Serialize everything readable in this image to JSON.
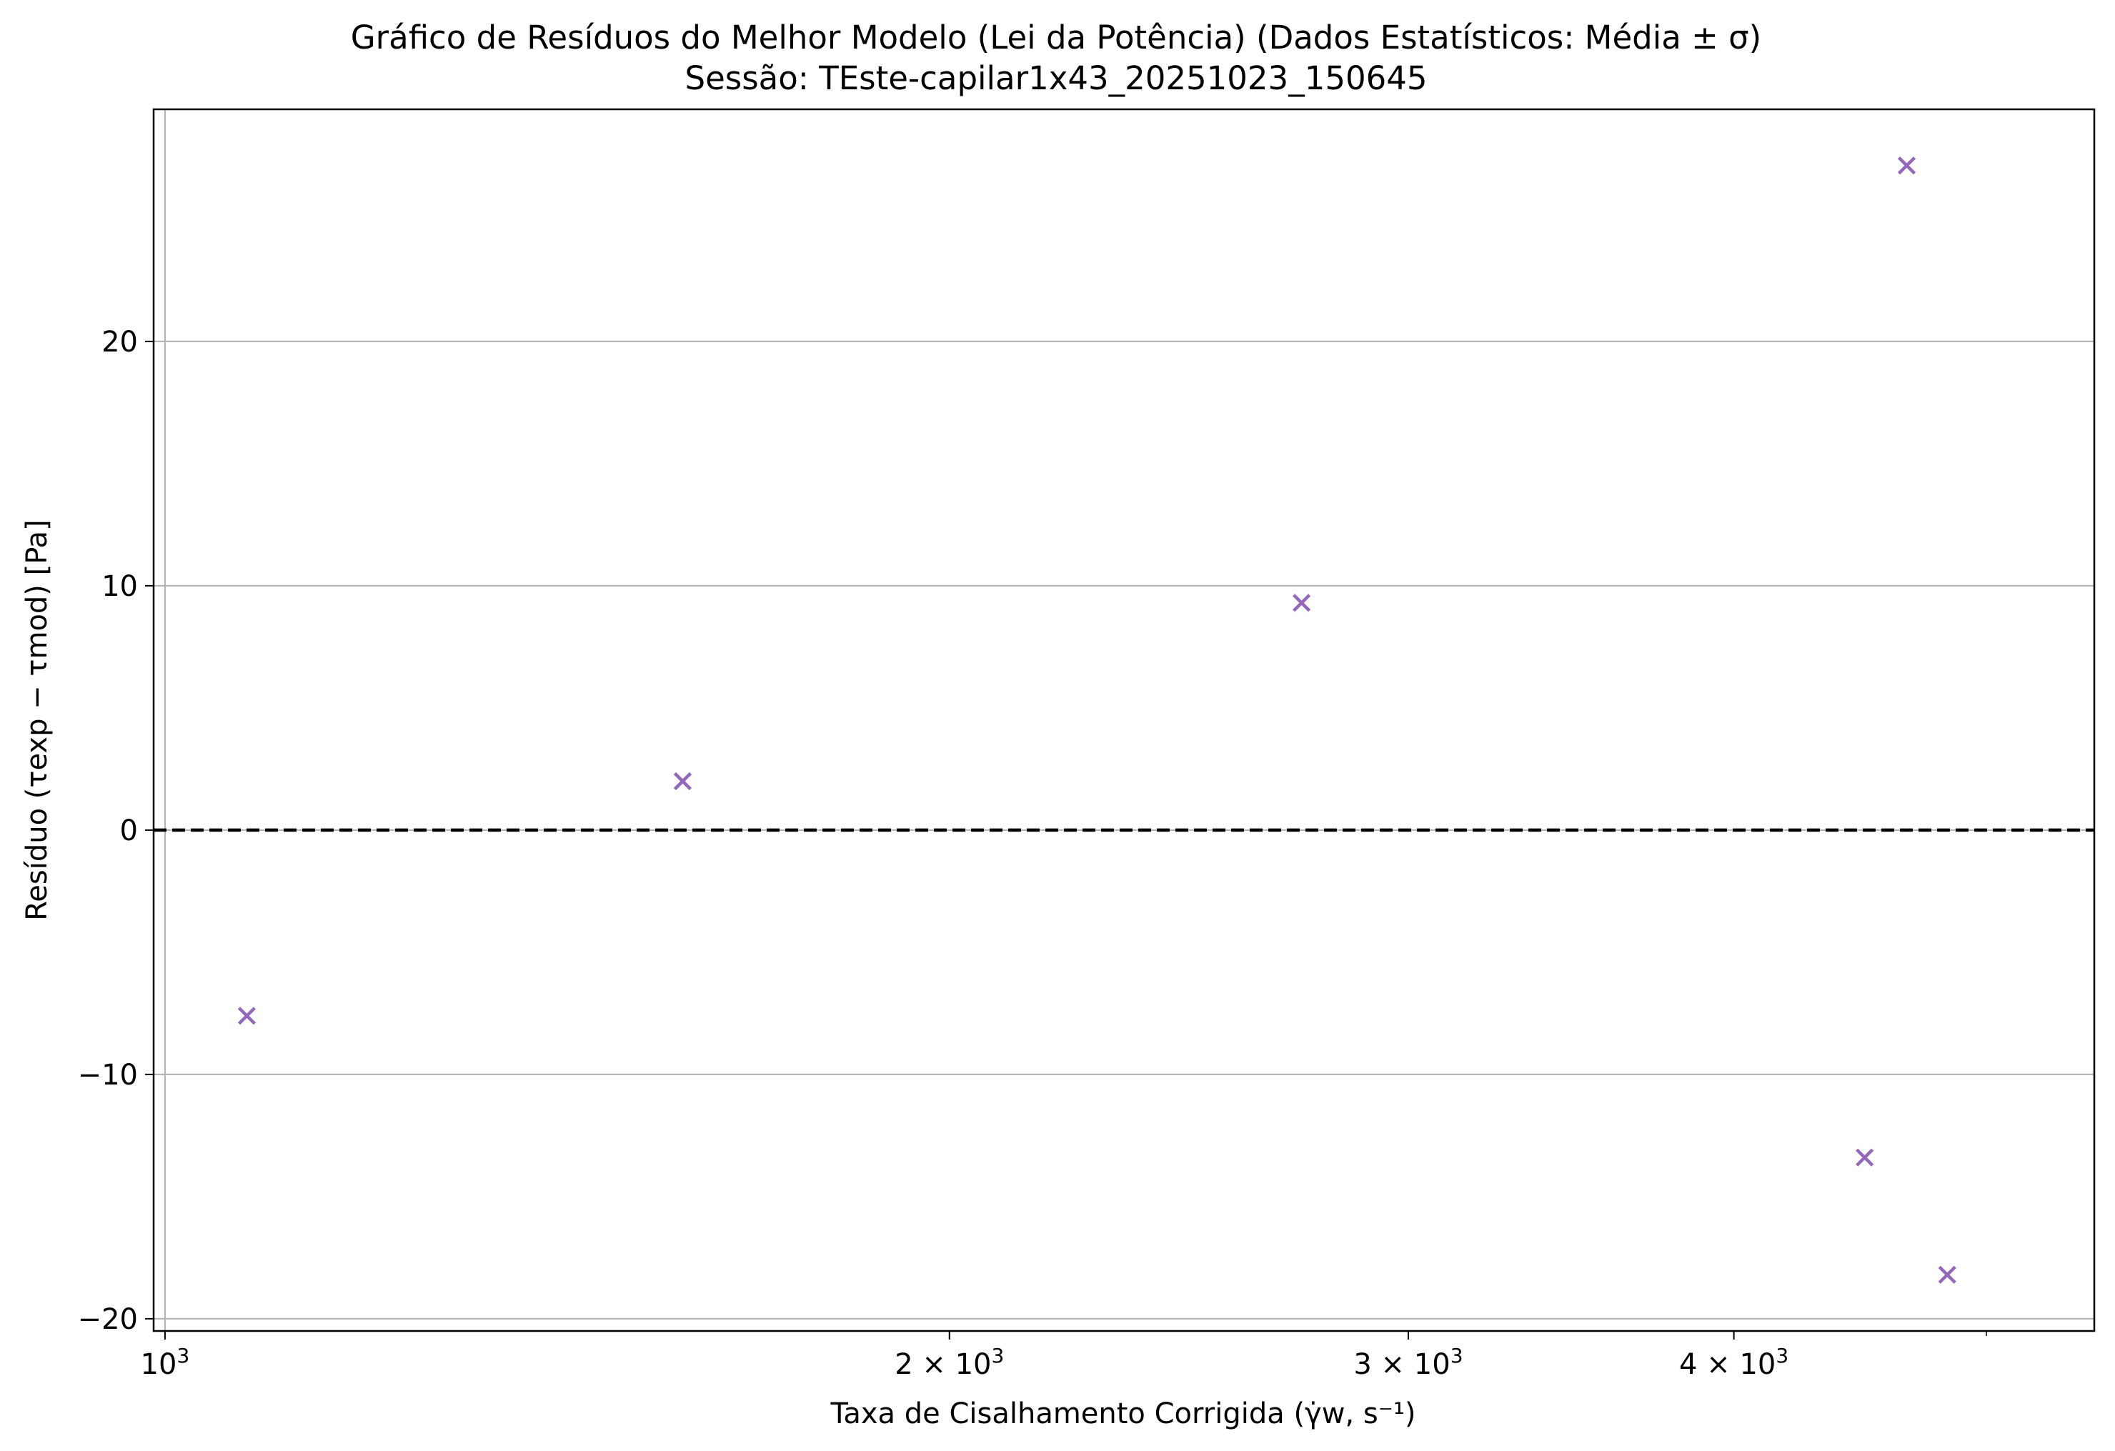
{
  "chart_data": {
    "type": "scatter",
    "title": "Gráfico de Resíduos do Melhor Modelo (Lei da Potência) (Dados Estatísticos: Média ± σ)",
    "subtitle": "Sessão: TEste-capilar1x43_20251023_150645",
    "xlabel": "Taxa de Cisalhamento Corrigida (γ̇w, s⁻¹)",
    "ylabel": "Resíduo (τexp − τmod) [Pa]",
    "x_scale": "log",
    "xlim": [
      990,
      5500
    ],
    "ylim": [
      -20.5,
      29.5
    ],
    "x_ticks": [
      {
        "value": 1000,
        "base": "10",
        "exp": "3",
        "mult": ""
      },
      {
        "value": 2000,
        "base": "10",
        "exp": "3",
        "mult": "2 × "
      },
      {
        "value": 3000,
        "base": "10",
        "exp": "3",
        "mult": "3 × "
      },
      {
        "value": 4000,
        "base": "10",
        "exp": "3",
        "mult": "4 × "
      }
    ],
    "y_ticks": [
      {
        "value": 20,
        "label": "20"
      },
      {
        "value": 10,
        "label": "10"
      },
      {
        "value": 0,
        "label": "0"
      },
      {
        "value": -10,
        "label": "−10"
      },
      {
        "value": -20,
        "label": "−20"
      }
    ],
    "grid": "y-major",
    "reference_line": {
      "y": 0,
      "style": "dashed",
      "color": "#000000"
    },
    "marker": "x",
    "color": "#9467bd",
    "points": [
      {
        "x": 1075,
        "y": -7.6
      },
      {
        "x": 1580,
        "y": 2.0
      },
      {
        "x": 2730,
        "y": 9.3
      },
      {
        "x": 4490,
        "y": -13.4
      },
      {
        "x": 4660,
        "y": 27.2
      },
      {
        "x": 4830,
        "y": -18.2
      }
    ]
  }
}
